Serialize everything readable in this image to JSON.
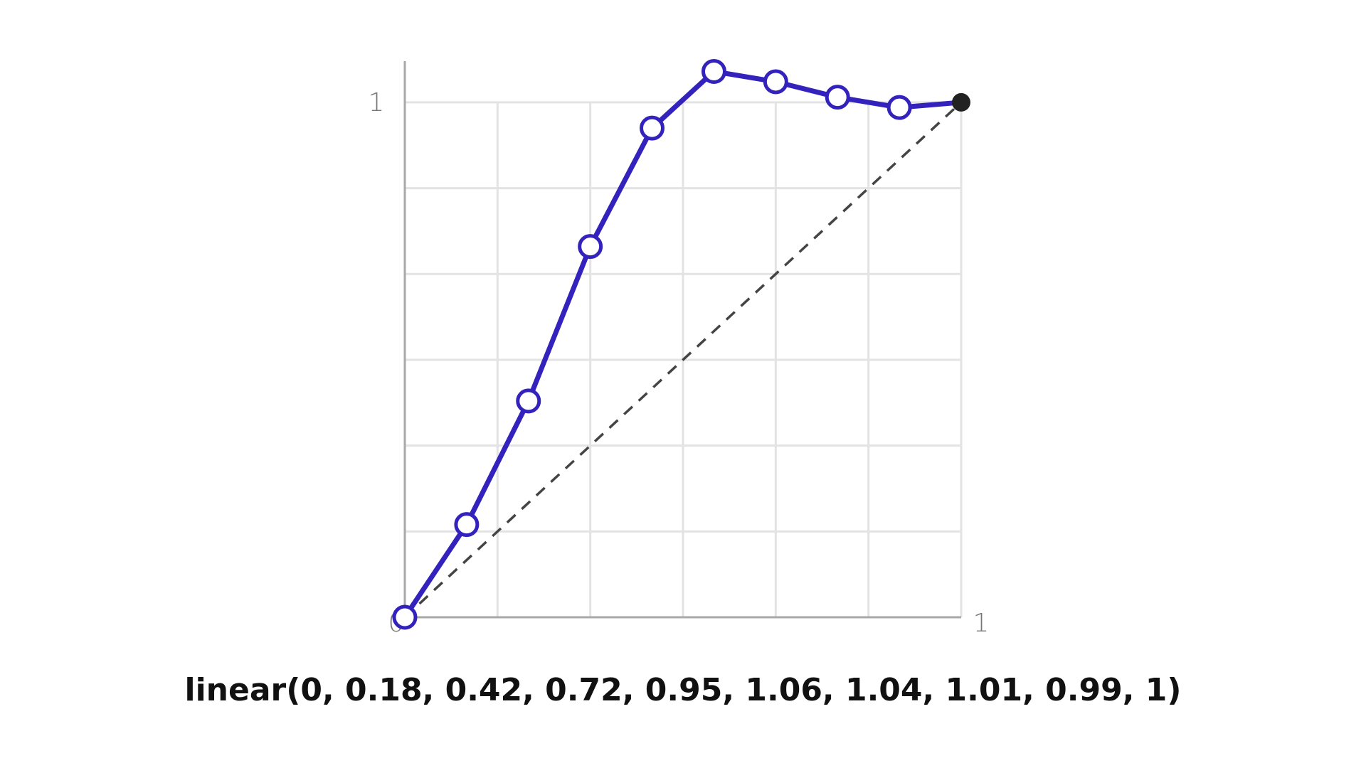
{
  "chart_data": {
    "type": "line",
    "caption": "linear(0, 0.18, 0.42, 0.72, 0.95, 1.06, 1.04, 1.01, 0.99, 1)",
    "x": [
      0,
      0.1111,
      0.2222,
      0.3333,
      0.4444,
      0.5556,
      0.6667,
      0.7778,
      0.8889,
      1
    ],
    "series": [
      {
        "color": "#3322bb",
        "end_color": "#222222",
        "values": [
          0,
          0.18,
          0.42,
          0.72,
          0.95,
          1.06,
          1.04,
          1.01,
          0.99,
          1
        ]
      }
    ],
    "xlim": [
      0,
      1
    ],
    "ylim": [
      0,
      1.08
    ],
    "xticks": [
      0,
      1
    ],
    "yticks": [
      1
    ],
    "grid": true,
    "grid_divisions": 6,
    "reference_diagonal": true
  }
}
